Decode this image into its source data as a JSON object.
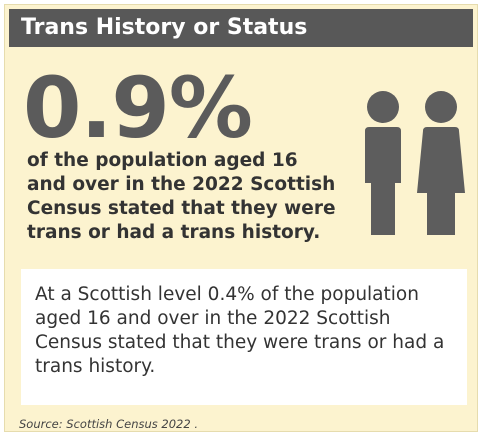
{
  "header": {
    "title": "Trans History or Status"
  },
  "stat": "0.9%",
  "description": [
    "of the population aged 16",
    "and over in the 2022 Scottish",
    "Census stated that they were",
    "trans or had a trans history."
  ],
  "note": [
    "At a Scottish level 0.4% of the population",
    "aged 16 and over in the 2022 Scottish",
    "Census stated that they were trans or had a",
    "trans history."
  ],
  "source": "Source: Scottish Census 2022 ."
}
